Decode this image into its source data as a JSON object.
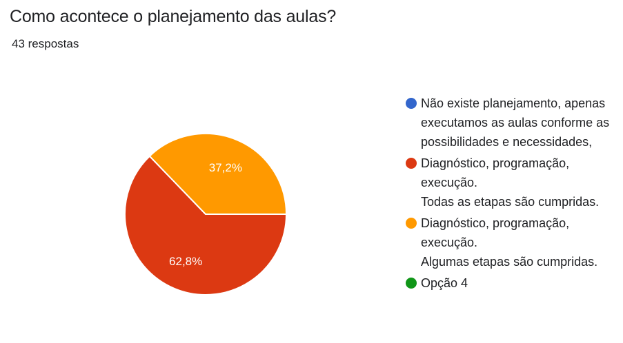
{
  "header": {
    "title": "Como acontece o planejamento das aulas?",
    "subtitle": "43 respostas"
  },
  "chart_data": {
    "type": "pie",
    "title": "Como acontece o planejamento das aulas?",
    "total_responses": 43,
    "slices": [
      {
        "label": "Não existe planejamento, apenas executamos as aulas conforme as possibilidades e necessidades,",
        "value": 0,
        "color": "#3366cc",
        "display": ""
      },
      {
        "label": "Diagnóstico, programação, execução. Todas as etapas são cumpridas.",
        "value": 62.8,
        "color": "#dc3912",
        "display": "62,8%"
      },
      {
        "label": "Diagnóstico, programação, execução. Algumas etapas são cumpridas.",
        "value": 37.2,
        "color": "#ff9900",
        "display": "37,2%"
      },
      {
        "label": "Opção 4",
        "value": 0,
        "color": "#109618",
        "display": ""
      }
    ],
    "legend_position": "right"
  },
  "legend": {
    "items": [
      {
        "label": "Não existe planejamento, apenas\nexecutamos as aulas conforme as\npossibilidades e necessidades,",
        "color": "#3366cc"
      },
      {
        "label": "Diagnóstico, programação, execução.\nTodas as etapas são cumpridas.",
        "color": "#dc3912"
      },
      {
        "label": "Diagnóstico, programação, execução.\nAlgumas etapas são cumpridas.",
        "color": "#ff9900"
      },
      {
        "label": "Opção 4",
        "color": "#109618"
      }
    ]
  }
}
